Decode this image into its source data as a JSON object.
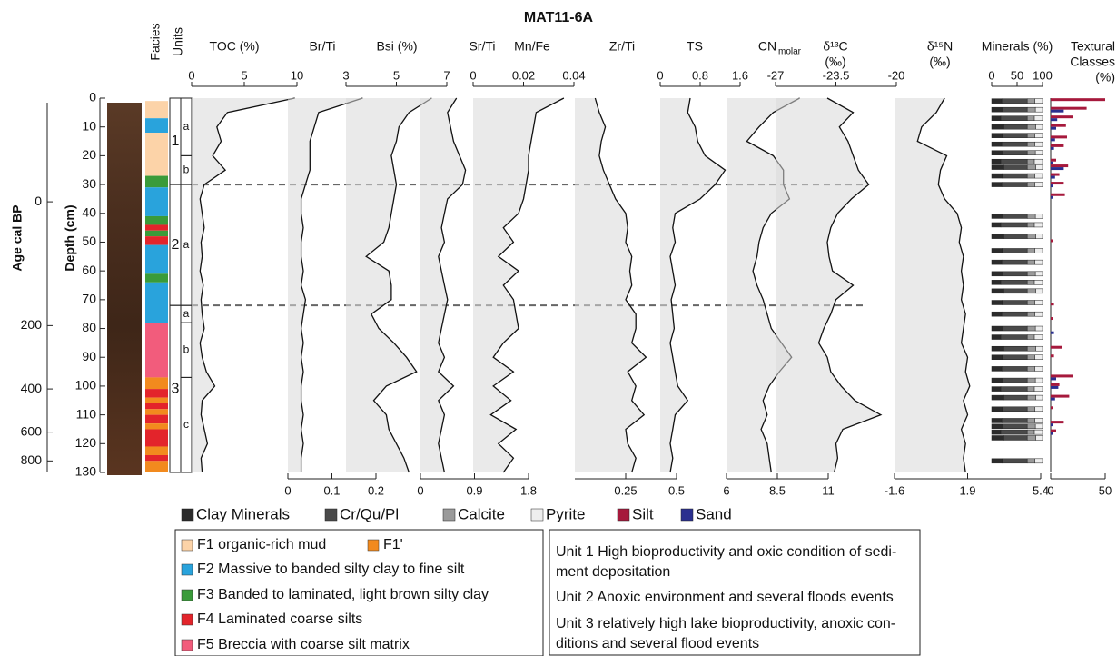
{
  "chart_data": {
    "type": "line",
    "title": "MAT11-6A",
    "depth_axis": {
      "label": "Depth (cm)",
      "ylim": [
        0,
        130
      ],
      "yticks": [
        0,
        10,
        20,
        30,
        40,
        50,
        60,
        70,
        80,
        90,
        100,
        110,
        120,
        130
      ]
    },
    "age_axis": {
      "label": "Age cal BP",
      "ticks": [
        0,
        200,
        400,
        600,
        800
      ],
      "tick_depths": [
        36,
        79,
        101,
        116,
        126
      ]
    },
    "facies_label": "Facies",
    "units_label": "Units",
    "facies": [
      {
        "top": 1,
        "bottom": 7,
        "color": "#fcd3a8"
      },
      {
        "top": 7,
        "bottom": 12,
        "color": "#29a3dc"
      },
      {
        "top": 12,
        "bottom": 27,
        "color": "#fcd3a8"
      },
      {
        "top": 27,
        "bottom": 31,
        "color": "#3a9b3a"
      },
      {
        "top": 31,
        "bottom": 41,
        "color": "#29a3dc"
      },
      {
        "top": 41,
        "bottom": 44,
        "color": "#3a9b3a"
      },
      {
        "top": 44,
        "bottom": 46,
        "color": "#e3242b"
      },
      {
        "top": 46,
        "bottom": 48,
        "color": "#3a9b3a"
      },
      {
        "top": 48,
        "bottom": 51,
        "color": "#e3242b"
      },
      {
        "top": 51,
        "bottom": 61,
        "color": "#29a3dc"
      },
      {
        "top": 61,
        "bottom": 64,
        "color": "#3a9b3a"
      },
      {
        "top": 64,
        "bottom": 78,
        "color": "#29a3dc"
      },
      {
        "top": 78,
        "bottom": 97,
        "color": "#f25c7c"
      },
      {
        "top": 97,
        "bottom": 101,
        "color": "#f28a1e"
      },
      {
        "top": 101,
        "bottom": 104,
        "color": "#e3242b"
      },
      {
        "top": 104,
        "bottom": 106,
        "color": "#f28a1e"
      },
      {
        "top": 106,
        "bottom": 108,
        "color": "#e3242b"
      },
      {
        "top": 108,
        "bottom": 110,
        "color": "#f28a1e"
      },
      {
        "top": 110,
        "bottom": 113,
        "color": "#e3242b"
      },
      {
        "top": 113,
        "bottom": 115,
        "color": "#f28a1e"
      },
      {
        "top": 115,
        "bottom": 121,
        "color": "#e3242b"
      },
      {
        "top": 121,
        "bottom": 124,
        "color": "#f28a1e"
      },
      {
        "top": 124,
        "bottom": 126,
        "color": "#e3242b"
      },
      {
        "top": 126,
        "bottom": 130,
        "color": "#f28a1e"
      }
    ],
    "units": [
      {
        "label": "1",
        "top": 0,
        "bottom": 30,
        "subunits": [
          {
            "label": "a",
            "top": 0,
            "bottom": 20
          },
          {
            "label": "b",
            "top": 20,
            "bottom": 30
          }
        ]
      },
      {
        "label": "2",
        "top": 30,
        "bottom": 72,
        "subunits": [
          {
            "label": "a",
            "top": 30,
            "bottom": 72
          }
        ]
      },
      {
        "label": "3",
        "top": 72,
        "bottom": 130,
        "subunits": [
          {
            "label": "a",
            "top": 72,
            "bottom": 78
          },
          {
            "label": "b",
            "top": 78,
            "bottom": 97
          },
          {
            "label": "c",
            "top": 97,
            "bottom": 130
          }
        ]
      }
    ],
    "depths": [
      0,
      5,
      10,
      15,
      20,
      25,
      30,
      35,
      40,
      45,
      50,
      55,
      60,
      65,
      70,
      75,
      80,
      85,
      90,
      95,
      100,
      105,
      110,
      115,
      120,
      125,
      130
    ],
    "panels": [
      {
        "kind": "curve",
        "label": [
          "TOC (%)"
        ],
        "axis": "top",
        "xlim": [
          0,
          10
        ],
        "xticks": [
          0,
          5,
          10
        ],
        "values": [
          9.8,
          3.4,
          2.4,
          2.8,
          2.0,
          3.2,
          1.2,
          0.8,
          1.0,
          1.2,
          0.9,
          1.0,
          0.8,
          1.1,
          0.9,
          1.0,
          1.2,
          0.8,
          1.0,
          1.4,
          2.2,
          1.0,
          0.9,
          1.2,
          1.5,
          0.9,
          1.0
        ]
      },
      {
        "kind": "curve",
        "label": [
          "Br/Ti"
        ],
        "axis": "bottom",
        "xlim": [
          0,
          0.2
        ],
        "xticks": [
          0,
          0.1,
          0.2
        ],
        "values": [
          0.17,
          0.07,
          0.06,
          0.05,
          0.05,
          0.05,
          0.04,
          0.03,
          0.03,
          0.035,
          0.03,
          0.03,
          0.035,
          0.03,
          0.04,
          0.035,
          0.03,
          0.035,
          0.03,
          0.035,
          0.03,
          0.03,
          0.035,
          0.03,
          0.035,
          0.03,
          0.03
        ]
      },
      {
        "kind": "curve",
        "label": [
          "Bsi (%)"
        ],
        "axis": "top",
        "xlim": [
          3,
          7
        ],
        "xticks": [
          3,
          5,
          7
        ],
        "values": [
          6.4,
          5.5,
          5.1,
          5.0,
          4.8,
          4.9,
          5.0,
          4.9,
          4.8,
          4.7,
          4.5,
          3.8,
          4.7,
          4.8,
          4.8,
          4.0,
          4.3,
          4.9,
          5.4,
          5.8,
          4.6,
          4.1,
          4.6,
          4.7,
          5.0,
          5.3,
          5.5
        ]
      },
      {
        "kind": "curve",
        "label": [
          "Sr/Ti"
        ],
        "axis": "bottom",
        "xlim": [
          0,
          1.8
        ],
        "xticks": [
          0,
          0.9,
          1.8
        ],
        "values": [
          0.6,
          0.45,
          0.5,
          0.55,
          0.65,
          0.75,
          0.7,
          0.45,
          0.4,
          0.35,
          0.4,
          0.3,
          0.35,
          0.4,
          0.45,
          0.4,
          0.35,
          0.3,
          0.4,
          0.3,
          0.55,
          0.3,
          0.4,
          0.35,
          0.3,
          0.35,
          0.4
        ]
      },
      {
        "kind": "curve",
        "label": [
          "Mn/Fe"
        ],
        "axis": "top",
        "xlim": [
          0,
          0.04
        ],
        "xticks": [
          0,
          0.02,
          0.04
        ],
        "values": [
          0.036,
          0.025,
          0.024,
          0.023,
          0.022,
          0.022,
          0.021,
          0.02,
          0.018,
          0.012,
          0.016,
          0.01,
          0.018,
          0.012,
          0.016,
          0.017,
          0.018,
          0.012,
          0.008,
          0.016,
          0.008,
          0.015,
          0.007,
          0.017,
          0.01,
          0.016,
          0.012
        ]
      },
      {
        "kind": "curve",
        "label": [
          "Zr/Ti"
        ],
        "axis": "bottom",
        "xlim": [
          0,
          0.5
        ],
        "xticks": [
          0.25,
          0.5
        ],
        "values": [
          0.1,
          0.12,
          0.15,
          0.13,
          0.12,
          0.14,
          0.17,
          0.2,
          0.25,
          0.26,
          0.25,
          0.28,
          0.27,
          0.28,
          0.25,
          0.3,
          0.3,
          0.28,
          0.35,
          0.26,
          0.3,
          0.28,
          0.34,
          0.25,
          0.26,
          0.3,
          0.28
        ]
      },
      {
        "kind": "curve",
        "label": [
          "TS"
        ],
        "axis": "top",
        "xlim": [
          0,
          1.6
        ],
        "xticks": [
          0,
          0.8,
          1.6
        ],
        "values": [
          0.6,
          0.55,
          0.7,
          0.75,
          0.9,
          1.3,
          1.1,
          0.8,
          0.3,
          0.25,
          0.3,
          0.2,
          0.25,
          0.3,
          0.22,
          0.25,
          0.28,
          0.2,
          0.25,
          0.3,
          0.35,
          0.55,
          0.3,
          0.25,
          0.2,
          0.25,
          0.2
        ]
      },
      {
        "kind": "curve",
        "label": [
          "CN"
        ],
        "label_sub": "molar",
        "axis": "bottom",
        "xlim": [
          6,
          11
        ],
        "xticks": [
          6,
          8.5,
          11
        ],
        "values": [
          9.6,
          8.3,
          7.6,
          7.0,
          8.3,
          8.8,
          8.8,
          9.1,
          8.2,
          7.8,
          7.6,
          7.5,
          7.3,
          7.5,
          7.8,
          8.0,
          8.2,
          8.7,
          9.2,
          8.6,
          8.1,
          7.8,
          8.0,
          7.7,
          8.0,
          8.1,
          8.2
        ]
      },
      {
        "kind": "curve",
        "label": [
          "δ¹³C",
          "(‰)"
        ],
        "axis": "top",
        "xlim": [
          -27,
          -20
        ],
        "xticks": [
          -27,
          -23.5,
          -20
        ],
        "values": [
          -24.0,
          -22.5,
          -23.3,
          -22.8,
          -22.5,
          -22.2,
          -21.6,
          -22.6,
          -23.4,
          -23.8,
          -24.0,
          -23.9,
          -23.7,
          -22.5,
          -23.5,
          -23.8,
          -24.2,
          -24.5,
          -24.0,
          -23.8,
          -23.2,
          -22.4,
          -20.9,
          -23.1,
          -23.5,
          -23.4,
          -23.6
        ]
      },
      {
        "kind": "curve",
        "label": [
          "δ¹⁵N",
          "(‰)"
        ],
        "axis": "bottom",
        "xlim": [
          -1.6,
          5.4
        ],
        "xticks": [
          -1.6,
          1.9,
          5.4
        ],
        "values": [
          0.8,
          0.4,
          -0.3,
          -0.5,
          0.9,
          0.6,
          0.5,
          0.8,
          1.4,
          1.6,
          1.5,
          1.7,
          1.6,
          1.7,
          1.6,
          1.8,
          1.7,
          1.6,
          1.9,
          1.8,
          2.0,
          1.7,
          1.9,
          1.6,
          1.8,
          1.7,
          1.8
        ]
      },
      {
        "kind": "stacked",
        "label": [
          "Minerals (%)"
        ],
        "axis": "top",
        "xlim": [
          0,
          100
        ],
        "xticks": [
          0,
          50,
          100
        ],
        "depths": [
          1,
          4,
          7,
          10,
          13,
          16,
          19,
          22,
          24,
          27,
          30,
          41,
          44,
          48,
          53,
          57,
          61,
          64,
          67,
          71,
          75,
          80,
          83,
          87,
          90,
          94,
          98,
          101,
          104,
          108,
          112,
          114,
          116,
          118,
          126
        ],
        "series": [
          {
            "name": "Clay Minerals",
            "color": "#2b2b2b",
            "values": [
              20,
              22,
              18,
              24,
              21,
              20,
              22,
              18,
              24,
              21,
              20,
              22,
              18,
              24,
              21,
              20,
              22,
              18,
              24,
              21,
              20,
              22,
              18,
              24,
              21,
              20,
              22,
              18,
              24,
              21,
              20,
              22,
              18,
              24,
              21
            ]
          },
          {
            "name": "Cr/Qu/Pl",
            "color": "#4a4a4a",
            "values": [
              50,
              48,
              52,
              46,
              49,
              50,
              48,
              52,
              46,
              49,
              50,
              48,
              52,
              46,
              49,
              50,
              48,
              52,
              46,
              49,
              50,
              48,
              52,
              46,
              49,
              50,
              48,
              52,
              46,
              49,
              50,
              48,
              52,
              46,
              49
            ]
          },
          {
            "name": "Calcite",
            "color": "#9a9a9a",
            "values": [
              15,
              16,
              14,
              17,
              15,
              15,
              16,
              14,
              17,
              15,
              15,
              16,
              14,
              17,
              15,
              15,
              16,
              14,
              17,
              15,
              15,
              16,
              14,
              17,
              15,
              15,
              16,
              14,
              17,
              15,
              15,
              16,
              14,
              17,
              15
            ]
          },
          {
            "name": "Pyrite",
            "color": "#eeeeee",
            "values": [
              15,
              14,
              16,
              13,
              15,
              15,
              14,
              16,
              13,
              15,
              15,
              14,
              16,
              13,
              15,
              15,
              14,
              16,
              13,
              15,
              15,
              14,
              16,
              13,
              15,
              15,
              14,
              16,
              13,
              15,
              15,
              14,
              16,
              13,
              15
            ]
          }
        ]
      },
      {
        "kind": "bars",
        "label": [
          "Textural",
          "Classes",
          "(%)"
        ],
        "axis": "bottom",
        "xlim": [
          0,
          50
        ],
        "xticks": [
          0,
          50
        ],
        "depths": [
          1,
          4,
          7,
          10,
          14,
          17,
          22,
          24,
          27,
          30,
          34,
          50,
          72,
          77,
          81,
          87,
          90,
          97,
          100,
          104,
          108,
          113,
          116
        ],
        "series": [
          {
            "name": "Silt",
            "color": "#a6193c",
            "values": [
              50,
              33,
              20,
              14,
              15,
              12,
              5,
              16,
              8,
              12,
              13,
              2,
              3,
              2,
              0,
              10,
              3,
              20,
              8,
              17,
              2,
              12,
              5
            ]
          },
          {
            "name": "Sand",
            "color": "#2a2f8f",
            "values": [
              0,
              12,
              6,
              5,
              4,
              3,
              2,
              12,
              4,
              2,
              2,
              0,
              0,
              0,
              3,
              0,
              0,
              5,
              7,
              4,
              0,
              2,
              2
            ]
          }
        ]
      }
    ],
    "facies_legend": [
      {
        "label": "F1 organic-rich mud",
        "color": "#fcd3a8"
      },
      {
        "label": "F1'",
        "color": "#f28a1e"
      },
      {
        "label": "F2 Massive to banded silty clay to fine silt",
        "color": "#29a3dc"
      },
      {
        "label": "F3 Banded to laminated, light brown silty clay",
        "color": "#3a9b3a"
      },
      {
        "label": "F4 Laminated coarse silts",
        "color": "#e3242b"
      },
      {
        "label": "F5 Breccia with coarse silt matrix",
        "color": "#f25c7c"
      }
    ],
    "unit_descriptions": [
      [
        "Unit 1 High bioproductivity and oxic condition of sedi-",
        "ment depositation"
      ],
      [
        "Unit 2 Anoxic environment and several floods events"
      ],
      [
        "Unit 3 relatively high lake bioproductivity, anoxic con-",
        "ditions and several flood events"
      ]
    ]
  }
}
